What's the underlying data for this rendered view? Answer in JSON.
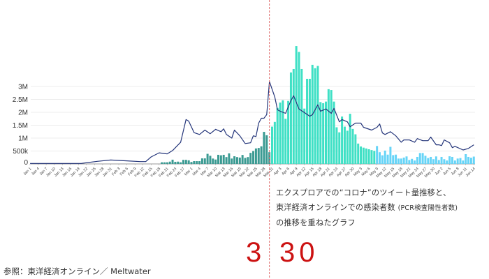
{
  "chart_data": {
    "type": "bar+line",
    "y_axis": {
      "ticks": [
        "0",
        "500k",
        "1M",
        "1.5M",
        "2M",
        "2.5M",
        "3M"
      ],
      "tick_values": [
        0,
        500000,
        1000000,
        1500000,
        2000000,
        2500000,
        3000000
      ],
      "ylim": [
        0,
        3000000
      ],
      "grid": true
    },
    "x_ticks": [
      "Jan 1",
      "Jan 4",
      "Jan 7",
      "Jan 10",
      "Jan 13",
      "Jan 16",
      "Jan 19",
      "Jan 22",
      "Jan 25",
      "Jan 28",
      "Jan 31",
      "Feb 3",
      "Feb 6",
      "Feb 9",
      "Feb 12",
      "Feb 15",
      "Feb 18",
      "Feb 21",
      "Feb 24",
      "Feb 27",
      "Mar 1",
      "Mar 4",
      "Mar 7",
      "Mar 10",
      "Mar 13",
      "Mar 16",
      "Mar 19",
      "Mar 22",
      "Mar 25",
      "Mar 28",
      "Mar 31",
      "Apr 3",
      "Apr 6",
      "Apr 9",
      "Apr 12",
      "Apr 15",
      "Apr 18",
      "Apr 21",
      "Apr 24",
      "Apr 27",
      "Apr 30",
      "May 3",
      "May 6",
      "May 9",
      "May 12",
      "May 15",
      "May 18",
      "May 21",
      "May 24",
      "May 27",
      "May 30",
      "Jun 2",
      "Jun 5",
      "Jun 8",
      "Jun 11",
      "Jun 14"
    ],
    "x_range": [
      "Jan 1",
      "Jun 14"
    ],
    "line": {
      "color": "#24357a",
      "points": [
        [
          "Jan 1",
          20000
        ],
        [
          "Jan 20",
          20000
        ],
        [
          "Jan 26",
          100000
        ],
        [
          "Jan 31",
          150000
        ],
        [
          "Feb 6",
          120000
        ],
        [
          "Feb 11",
          90000
        ],
        [
          "Feb 13",
          90000
        ],
        [
          "Feb 15",
          270000
        ],
        [
          "Feb 18",
          430000
        ],
        [
          "Feb 21",
          390000
        ],
        [
          "Feb 23",
          520000
        ],
        [
          "Feb 26",
          840000
        ],
        [
          "Feb 28",
          1720000
        ],
        [
          "Feb 29",
          1660000
        ],
        [
          "Mar 2",
          1210000
        ],
        [
          "Mar 4",
          1140000
        ],
        [
          "Mar 6",
          1310000
        ],
        [
          "Mar 8",
          1170000
        ],
        [
          "Mar 10",
          1340000
        ],
        [
          "Mar 12",
          1250000
        ],
        [
          "Mar 13",
          1360000
        ],
        [
          "Mar 14",
          1140000
        ],
        [
          "Mar 16",
          1000000
        ],
        [
          "Mar 17",
          1310000
        ],
        [
          "Mar 19",
          1090000
        ],
        [
          "Mar 21",
          790000
        ],
        [
          "Mar 23",
          820000
        ],
        [
          "Mar 24",
          1090000
        ],
        [
          "Mar 25",
          1060000
        ],
        [
          "Mar 26",
          1580000
        ],
        [
          "Mar 27",
          1770000
        ],
        [
          "Mar 28",
          1770000
        ],
        [
          "Mar 29",
          1910000
        ],
        [
          "Mar 30",
          3190000
        ],
        [
          "Apr 1",
          2590000
        ],
        [
          "Apr 2",
          2100000
        ],
        [
          "Apr 3",
          2040000
        ],
        [
          "Apr 5",
          1960000
        ],
        [
          "Apr 7",
          2450000
        ],
        [
          "Apr 8",
          2640000
        ],
        [
          "Apr 10",
          2130000
        ],
        [
          "Apr 12",
          1990000
        ],
        [
          "Apr 14",
          1850000
        ],
        [
          "Apr 15",
          1910000
        ],
        [
          "Apr 17",
          2290000
        ],
        [
          "Apr 18",
          2040000
        ],
        [
          "Apr 20",
          2130000
        ],
        [
          "Apr 22",
          1960000
        ],
        [
          "Apr 23",
          2150000
        ],
        [
          "Apr 25",
          1630000
        ],
        [
          "Apr 26",
          1720000
        ],
        [
          "Apr 28",
          1630000
        ],
        [
          "Apr 29",
          1440000
        ],
        [
          "May 1",
          1580000
        ],
        [
          "May 3",
          1580000
        ],
        [
          "May 4",
          1420000
        ],
        [
          "May 7",
          1310000
        ],
        [
          "May 9",
          1420000
        ],
        [
          "May 10",
          1550000
        ],
        [
          "May 11",
          1200000
        ],
        [
          "May 12",
          1140000
        ],
        [
          "May 14",
          1250000
        ],
        [
          "May 16",
          1090000
        ],
        [
          "May 18",
          840000
        ],
        [
          "May 19",
          930000
        ],
        [
          "May 21",
          930000
        ],
        [
          "May 23",
          840000
        ],
        [
          "May 24",
          980000
        ],
        [
          "May 26",
          900000
        ],
        [
          "May 28",
          900000
        ],
        [
          "May 29",
          1040000
        ],
        [
          "May 31",
          740000
        ],
        [
          "Jun 1",
          740000
        ],
        [
          "Jun 2",
          710000
        ],
        [
          "Jun 3",
          930000
        ],
        [
          "Jun 5",
          820000
        ],
        [
          "Jun 6",
          630000
        ],
        [
          "Jun 7",
          680000
        ],
        [
          "Jun 10",
          540000
        ],
        [
          "Jun 12",
          600000
        ],
        [
          "Jun 14",
          740000
        ]
      ]
    },
    "bars": [
      {
        "start": "Feb 19",
        "color": "#3a9a92",
        "values": [
          10,
          10,
          10,
          14,
          26,
          13,
          14,
          10,
          25,
          25,
          22,
          12,
          17,
          17,
          17,
          34,
          34,
          62,
          50,
          33,
          27,
          56,
          53,
          56,
          42,
          65,
          33,
          47,
          42,
          39,
          55,
          37,
          42,
          68,
          79,
          95,
          98,
          108,
          197,
          176,
          72
        ]
      },
      {
        "start": "Mar 31",
        "color": "#3fe0c5",
        "values": [
          229,
          258,
          344,
          377,
          391,
          277,
          387,
          562,
          583,
          724,
          688,
          583,
          340,
          523,
          523,
          609,
          588,
          602,
          380,
          373,
          383,
          459,
          454,
          383,
          225,
          194,
          291,
          229,
          204,
          308,
          215,
          182,
          125,
          107,
          100,
          95,
          90,
          85,
          80
        ]
      },
      {
        "start": "May 9",
        "color": "#66d4f7",
        "values": [
          110,
          72,
          53,
          82,
          57,
          105,
          54,
          57,
          33,
          33,
          39,
          46,
          24,
          31,
          21,
          43,
          67,
          67,
          50,
          36,
          43,
          29,
          46,
          24,
          43,
          29,
          21,
          47,
          43,
          21,
          33,
          36,
          21,
          60,
          43,
          38,
          45
        ]
      }
    ],
    "marker": {
      "date": "Mar 30",
      "color": "#e06a6a"
    }
  },
  "caption": {
    "line1": "エクスプロアでの“コロナ”のツイート量推移と、",
    "line2_main": "東洋経済オンラインでの感染者数",
    "line2_small": "(PCR検査陽性者数)",
    "line3": "の推移を重ねたグラフ"
  },
  "source": "参照：東洋経済オンライン／ Meltwater",
  "marker_label": {
    "month": "3",
    "day": "30",
    "color": "#cc1212"
  }
}
